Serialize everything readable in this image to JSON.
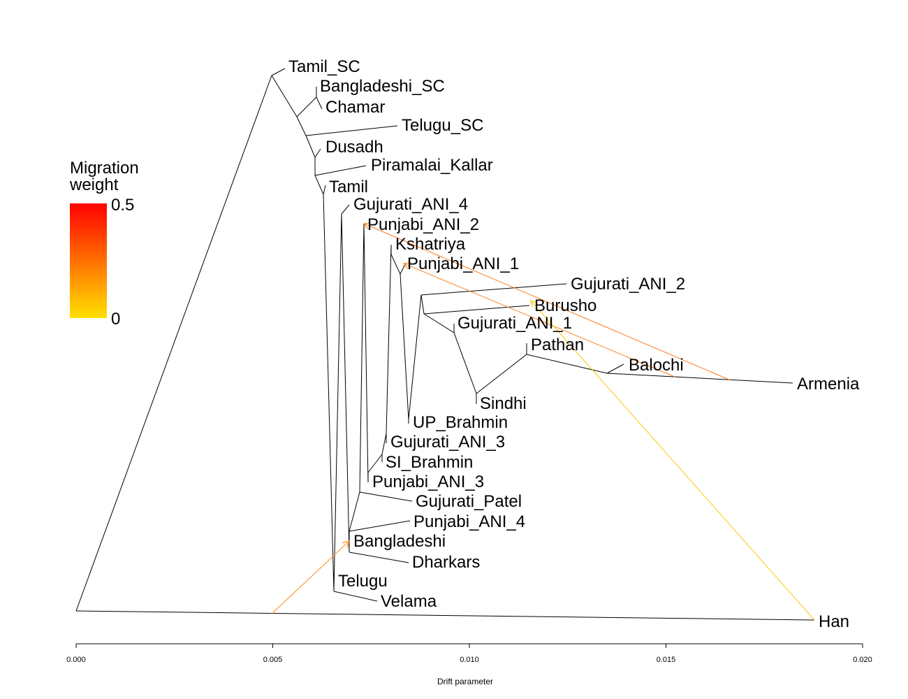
{
  "chart_data": {
    "type": "tree",
    "title": "",
    "xlabel": "Drift parameter",
    "ylabel": "",
    "xlim": [
      0.0,
      0.02
    ],
    "xticks": [
      "0.000",
      "0.005",
      "0.010",
      "0.015",
      "0.020"
    ],
    "legend": {
      "title_line1": "Migration",
      "title_line2": "weight",
      "max_label": "0.5",
      "min_label": "0",
      "low_color": "#ffe000",
      "high_color": "#ff0000",
      "placement": "left"
    },
    "leaves": [
      {
        "name": "Tamil_SC"
      },
      {
        "name": "Bangladeshi_SC"
      },
      {
        "name": "Chamar"
      },
      {
        "name": "Telugu_SC"
      },
      {
        "name": "Dusadh"
      },
      {
        "name": "Piramalai_Kallar"
      },
      {
        "name": "Tamil"
      },
      {
        "name": "Gujurati_ANI_4"
      },
      {
        "name": "Punjabi_ANI_2"
      },
      {
        "name": "Kshatriya"
      },
      {
        "name": "Punjabi_ANI_1"
      },
      {
        "name": "Gujurati_ANI_2"
      },
      {
        "name": "Burusho"
      },
      {
        "name": "Gujurati_ANI_1"
      },
      {
        "name": "Pathan"
      },
      {
        "name": "Balochi"
      },
      {
        "name": "Armenia"
      },
      {
        "name": "Sindhi"
      },
      {
        "name": "UP_Brahmin"
      },
      {
        "name": "Gujurati_ANI_3"
      },
      {
        "name": "SI_Brahmin"
      },
      {
        "name": "Punjabi_ANI_3"
      },
      {
        "name": "Gujurati_Patel"
      },
      {
        "name": "Punjabi_ANI_4"
      },
      {
        "name": "Bangladeshi"
      },
      {
        "name": "Dharkars"
      },
      {
        "name": "Telugu"
      },
      {
        "name": "Velama"
      },
      {
        "name": "Han"
      }
    ],
    "migration_edges": [
      {
        "from": "Han-branch",
        "to": "Bangladeshi",
        "weight": 0.35
      },
      {
        "from": "Armenia-branch",
        "to": "Punjabi_ANI_2",
        "weight": 0.4
      },
      {
        "from": "Balochi-branch",
        "to": "Punjabi_ANI_1",
        "weight": 0.38
      },
      {
        "from": "Han",
        "to": "Burusho",
        "weight": 0.15
      }
    ]
  }
}
